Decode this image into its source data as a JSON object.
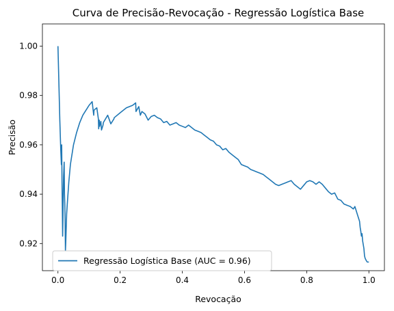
{
  "chart_data": {
    "type": "line",
    "title": "Curva de Precisão-Revocação - Regressão Logística Base",
    "xlabel": "Revocação",
    "ylabel": "Precisão",
    "xlim": [
      -0.05,
      1.05
    ],
    "ylim": [
      0.909,
      1.009
    ],
    "xticks": [
      0.0,
      0.2,
      0.4,
      0.6,
      0.8,
      1.0
    ],
    "xtick_labels": [
      "0.0",
      "0.2",
      "0.4",
      "0.6",
      "0.8",
      "1.0"
    ],
    "yticks": [
      0.92,
      0.94,
      0.96,
      0.98,
      1.0
    ],
    "ytick_labels": [
      "0.92",
      "0.94",
      "0.96",
      "0.98",
      "1.00"
    ],
    "grid": false,
    "legend_position": "lower-left",
    "series": [
      {
        "name": "Regressão Logística Base (AUC = 0.96)",
        "color": "#1f77b4",
        "x": [
          0.0,
          0.003,
          0.006,
          0.009,
          0.011,
          0.012,
          0.013,
          0.014,
          0.015,
          0.016,
          0.017,
          0.018,
          0.02,
          0.021,
          0.022,
          0.023,
          0.024,
          0.025,
          0.026,
          0.027,
          0.028,
          0.03,
          0.035,
          0.04,
          0.05,
          0.06,
          0.07,
          0.08,
          0.09,
          0.1,
          0.11,
          0.115,
          0.116,
          0.12,
          0.125,
          0.13,
          0.131,
          0.133,
          0.134,
          0.138,
          0.14,
          0.145,
          0.146,
          0.16,
          0.17,
          0.18,
          0.181,
          0.2,
          0.22,
          0.24,
          0.25,
          0.251,
          0.26,
          0.262,
          0.265,
          0.27,
          0.28,
          0.29,
          0.3,
          0.31,
          0.32,
          0.33,
          0.34,
          0.35,
          0.36,
          0.37,
          0.38,
          0.39,
          0.4,
          0.41,
          0.42,
          0.43,
          0.44,
          0.45,
          0.46,
          0.47,
          0.48,
          0.49,
          0.5,
          0.51,
          0.52,
          0.53,
          0.54,
          0.55,
          0.56,
          0.57,
          0.58,
          0.59,
          0.6,
          0.61,
          0.62,
          0.63,
          0.64,
          0.65,
          0.66,
          0.67,
          0.68,
          0.69,
          0.7,
          0.71,
          0.72,
          0.73,
          0.74,
          0.75,
          0.76,
          0.77,
          0.78,
          0.79,
          0.8,
          0.81,
          0.82,
          0.83,
          0.84,
          0.85,
          0.86,
          0.87,
          0.88,
          0.89,
          0.9,
          0.91,
          0.92,
          0.93,
          0.94,
          0.95,
          0.955,
          0.96,
          0.965,
          0.97,
          0.972,
          0.974,
          0.976,
          0.978,
          0.98,
          0.982,
          0.984,
          0.986,
          0.988,
          0.99,
          0.992,
          0.995,
          1.0
        ],
        "y": [
          1.0,
          0.985,
          0.97,
          0.958,
          0.952,
          0.96,
          0.945,
          0.935,
          0.923,
          0.93,
          0.94,
          0.947,
          0.953,
          0.94,
          0.936,
          0.93,
          0.917,
          0.92,
          0.924,
          0.928,
          0.932,
          0.936,
          0.945,
          0.952,
          0.96,
          0.965,
          0.969,
          0.972,
          0.974,
          0.976,
          0.9775,
          0.972,
          0.974,
          0.9745,
          0.975,
          0.9705,
          0.9665,
          0.97,
          0.9675,
          0.9695,
          0.966,
          0.968,
          0.969,
          0.972,
          0.9685,
          0.9705,
          0.971,
          0.973,
          0.975,
          0.976,
          0.977,
          0.9735,
          0.9755,
          0.974,
          0.972,
          0.9735,
          0.9725,
          0.97,
          0.9715,
          0.972,
          0.971,
          0.9705,
          0.969,
          0.9695,
          0.968,
          0.9685,
          0.969,
          0.968,
          0.9675,
          0.967,
          0.968,
          0.967,
          0.966,
          0.9655,
          0.965,
          0.964,
          0.963,
          0.962,
          0.9615,
          0.96,
          0.9595,
          0.958,
          0.9585,
          0.957,
          0.956,
          0.955,
          0.954,
          0.952,
          0.9515,
          0.951,
          0.95,
          0.9495,
          0.949,
          0.9485,
          0.948,
          0.947,
          0.946,
          0.945,
          0.944,
          0.9435,
          0.944,
          0.9445,
          0.945,
          0.9455,
          0.944,
          0.943,
          0.942,
          0.9435,
          0.945,
          0.9455,
          0.945,
          0.944,
          0.945,
          0.944,
          0.9425,
          0.941,
          0.94,
          0.9405,
          0.938,
          0.9375,
          0.936,
          0.9355,
          0.935,
          0.934,
          0.935,
          0.933,
          0.931,
          0.929,
          0.9265,
          0.925,
          0.923,
          0.924,
          0.921,
          0.9195,
          0.918,
          0.915,
          0.914,
          0.9135,
          0.913,
          0.9125,
          0.9125
        ]
      }
    ]
  }
}
